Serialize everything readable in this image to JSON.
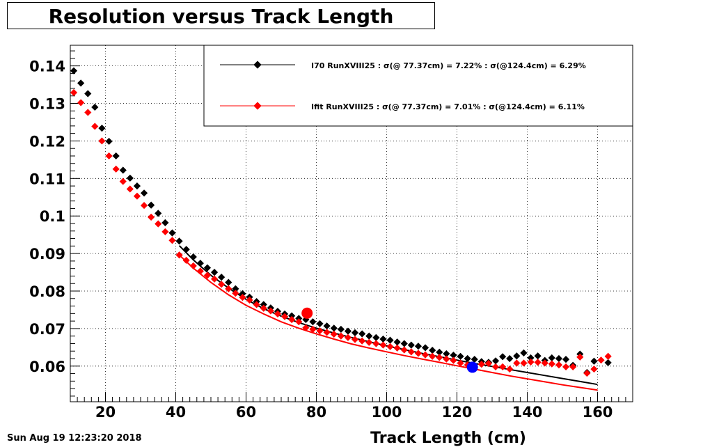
{
  "header": {
    "timestamp": "Sun Aug 19 12:23:20 2018"
  },
  "chart_data": {
    "type": "scatter",
    "title": "Resolution versus Track Length",
    "xlabel": "Track Length (cm)",
    "ylabel": "",
    "xlim": [
      10,
      170
    ],
    "ylim": [
      0.0505,
      0.1455
    ],
    "x_ticks": [
      20,
      40,
      60,
      80,
      100,
      120,
      140,
      160
    ],
    "y_ticks": [
      0.06,
      0.07,
      0.08,
      0.09,
      0.1,
      0.11,
      0.12,
      0.13,
      0.14
    ],
    "x_tick_labels": [
      "20",
      "40",
      "60",
      "80",
      "100",
      "120",
      "140",
      "160"
    ],
    "y_tick_labels": [
      "0.06",
      "0.07",
      "0.08",
      "0.09",
      "0.1",
      "0.11",
      "0.12",
      "0.13",
      "0.14"
    ],
    "grid": true,
    "legend_position": "top-right",
    "series": [
      {
        "name": "I70  RunXVIII25 : σ(@ 77.37cm) =  7.22% : σ(@124.4cm) =  6.29%",
        "color": "#000000",
        "x": [
          11,
          13,
          15,
          17,
          19,
          21,
          23,
          25,
          27,
          29,
          31,
          33,
          35,
          37,
          39,
          41,
          43,
          45,
          47,
          49,
          51,
          53,
          55,
          57,
          59,
          61,
          63,
          65,
          67,
          69,
          71,
          73,
          75,
          77,
          79,
          81,
          83,
          85,
          87,
          89,
          91,
          93,
          95,
          97,
          99,
          101,
          103,
          105,
          107,
          109,
          111,
          113,
          115,
          117,
          119,
          121,
          123,
          125,
          127,
          129,
          131,
          133,
          135,
          137,
          139,
          141,
          143,
          145,
          147,
          149,
          151,
          153,
          155,
          157,
          159,
          163
        ],
        "y": [
          0.1387,
          0.1354,
          0.1326,
          0.129,
          0.1234,
          0.1199,
          0.116,
          0.1122,
          0.1101,
          0.108,
          0.1061,
          0.1029,
          0.1007,
          0.0982,
          0.0955,
          0.0933,
          0.0911,
          0.0891,
          0.0874,
          0.0862,
          0.085,
          0.0837,
          0.0823,
          0.0806,
          0.0793,
          0.0784,
          0.0772,
          0.0764,
          0.0755,
          0.0746,
          0.0739,
          0.0734,
          0.0727,
          0.0724,
          0.0718,
          0.0713,
          0.0707,
          0.0701,
          0.0698,
          0.0693,
          0.0689,
          0.0686,
          0.068,
          0.0676,
          0.0672,
          0.0669,
          0.0664,
          0.066,
          0.0656,
          0.0653,
          0.0649,
          0.0642,
          0.0637,
          0.0633,
          0.0629,
          0.0626,
          0.062,
          0.0618,
          0.0612,
          0.061,
          0.0614,
          0.0625,
          0.062,
          0.0627,
          0.0635,
          0.0622,
          0.0627,
          0.0615,
          0.0622,
          0.062,
          0.0618,
          0.0602,
          0.0632,
          0.0583,
          0.0613,
          0.0609
        ],
        "fit_line": {
          "x": [
            41,
            45,
            50,
            55,
            60,
            65,
            70,
            75,
            80,
            85,
            90,
            95,
            100,
            105,
            110,
            115,
            120,
            125,
            130,
            135,
            140,
            145,
            150,
            155,
            160
          ],
          "y": [
            0.0921,
            0.0883,
            0.0842,
            0.0808,
            0.0778,
            0.0753,
            0.0733,
            0.0716,
            0.0701,
            0.0688,
            0.0676,
            0.0665,
            0.0654,
            0.0644,
            0.0634,
            0.0625,
            0.0616,
            0.0607,
            0.0599,
            0.0591,
            0.0583,
            0.0575,
            0.0567,
            0.0559,
            0.0551
          ]
        }
      },
      {
        "name": "Ifit RunXVIII25 : σ(@ 77.37cm) =  7.01% : σ(@124.4cm) =  6.11%",
        "color": "#ff0000",
        "x": [
          11,
          13,
          15,
          17,
          19,
          21,
          23,
          25,
          27,
          29,
          31,
          33,
          35,
          37,
          39,
          41,
          43,
          45,
          47,
          49,
          51,
          53,
          55,
          57,
          59,
          61,
          63,
          65,
          67,
          69,
          71,
          73,
          75,
          77,
          79,
          81,
          83,
          85,
          87,
          89,
          91,
          93,
          95,
          97,
          99,
          101,
          103,
          105,
          107,
          109,
          111,
          113,
          115,
          117,
          119,
          121,
          123,
          125,
          127,
          129,
          131,
          133,
          135,
          137,
          139,
          141,
          143,
          145,
          147,
          149,
          151,
          153,
          155,
          157,
          159,
          161,
          163
        ],
        "y": [
          0.1329,
          0.1302,
          0.1276,
          0.1239,
          0.12,
          0.116,
          0.1125,
          0.1092,
          0.1072,
          0.1053,
          0.1028,
          0.0997,
          0.0979,
          0.0958,
          0.0935,
          0.0896,
          0.0882,
          0.0867,
          0.0853,
          0.0842,
          0.0832,
          0.0818,
          0.0806,
          0.0794,
          0.0783,
          0.0776,
          0.0764,
          0.0754,
          0.0747,
          0.0739,
          0.0732,
          0.0724,
          0.0718,
          0.0702,
          0.0698,
          0.0694,
          0.069,
          0.0685,
          0.068,
          0.0676,
          0.0671,
          0.0667,
          0.0663,
          0.066,
          0.0656,
          0.0652,
          0.0648,
          0.0643,
          0.0638,
          0.0634,
          0.063,
          0.0626,
          0.0623,
          0.0619,
          0.0615,
          0.0608,
          0.0603,
          0.06,
          0.0605,
          0.0607,
          0.0598,
          0.0598,
          0.0592,
          0.0608,
          0.0608,
          0.0611,
          0.061,
          0.0608,
          0.0606,
          0.0603,
          0.0598,
          0.0598,
          0.0624,
          0.0581,
          0.0592,
          0.0616,
          0.0626
        ],
        "fit_line": {
          "x": [
            41,
            45,
            50,
            55,
            60,
            65,
            70,
            75,
            80,
            85,
            90,
            95,
            100,
            105,
            110,
            115,
            120,
            125,
            130,
            135,
            140,
            145,
            150,
            155,
            160
          ],
          "y": [
            0.0896,
            0.0861,
            0.0823,
            0.079,
            0.0762,
            0.0739,
            0.0718,
            0.0701,
            0.0686,
            0.0672,
            0.0659,
            0.0648,
            0.0638,
            0.0628,
            0.0619,
            0.061,
            0.0601,
            0.0592,
            0.0583,
            0.0574,
            0.0566,
            0.0558,
            0.055,
            0.0543,
            0.0536
          ]
        }
      }
    ],
    "reference_points": [
      {
        "x": 77.37,
        "y": 0.0741,
        "color": "#ff0000"
      },
      {
        "x": 124.4,
        "y": 0.0597,
        "color": "#0000ff"
      }
    ]
  }
}
